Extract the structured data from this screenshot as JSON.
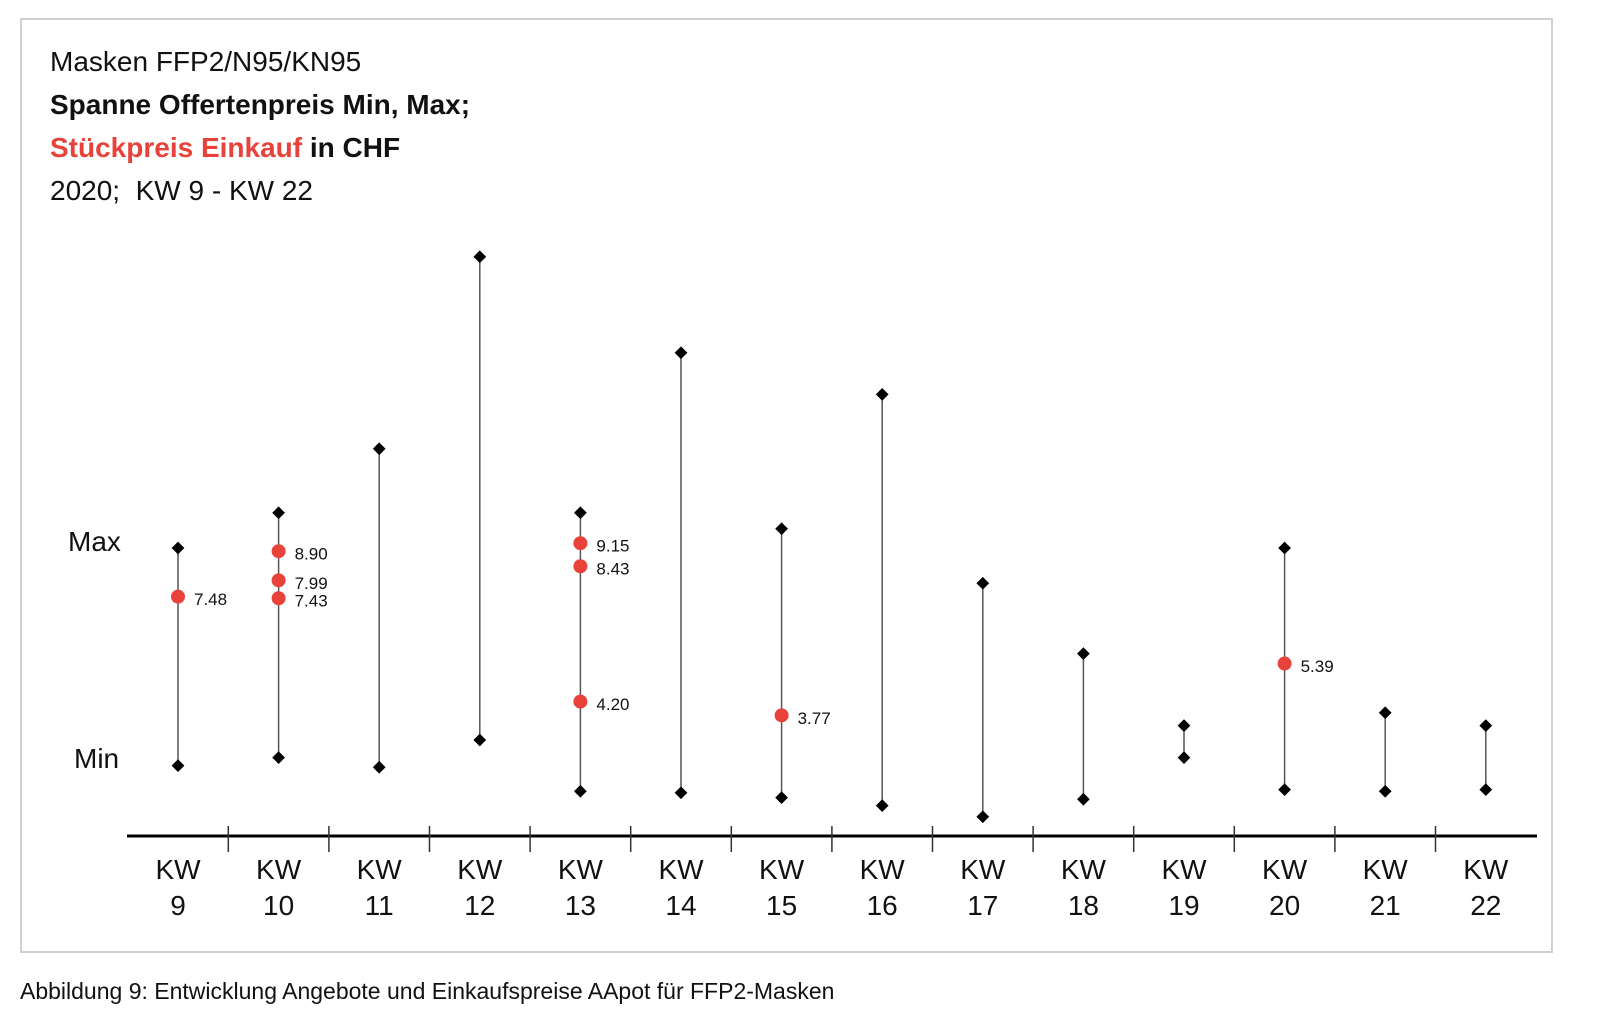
{
  "chart_data": {
    "type": "range",
    "title": "Masken FFP2/N95/KN95",
    "subtitle": "Spanne Offertenpreis Min, Max;",
    "subtitle_unit": "in CHF",
    "period": "2020;  KW 9 - KW 22",
    "caption": "Abbildung 9: Entwicklung Angebote und Einkaufspreise AApot für FFP2-Masken",
    "categories": [
      "KW 9",
      "KW 10",
      "KW 11",
      "KW 12",
      "KW 13",
      "KW 14",
      "KW 15",
      "KW 16",
      "KW 17",
      "KW 18",
      "KW 19",
      "KW 20",
      "KW 21",
      "KW 22"
    ],
    "series": [
      {
        "name": "Min",
        "color": "#000000",
        "values": [
          2.2,
          2.45,
          2.15,
          3.0,
          1.4,
          1.35,
          1.2,
          0.95,
          0.6,
          1.15,
          2.45,
          1.45,
          1.4,
          1.45
        ]
      },
      {
        "name": "Max",
        "color": "#000000",
        "values": [
          9.0,
          10.1,
          12.1,
          18.1,
          10.1,
          15.1,
          9.6,
          13.8,
          7.9,
          5.7,
          3.45,
          9.0,
          3.85,
          3.45
        ]
      },
      {
        "name": "Stückpreis Einkauf",
        "color": "#e8423a",
        "values": [
          [
            7.48
          ],
          [
            8.9,
            7.99,
            7.43
          ],
          [],
          [],
          [
            9.15,
            8.43,
            4.2
          ],
          [],
          [
            3.77
          ],
          [],
          [],
          [],
          [],
          [
            5.39
          ],
          [],
          []
        ],
        "value_labels": [
          [
            "7.48"
          ],
          [
            "8.90",
            "7.99",
            "7.43"
          ],
          [],
          [],
          [
            "9.15",
            "8.43",
            "4.20"
          ],
          [],
          [
            "3.77"
          ],
          [],
          [],
          [],
          [],
          [
            "5.39"
          ],
          [],
          []
        ]
      }
    ],
    "ylim": [
      0,
      19
    ]
  }
}
